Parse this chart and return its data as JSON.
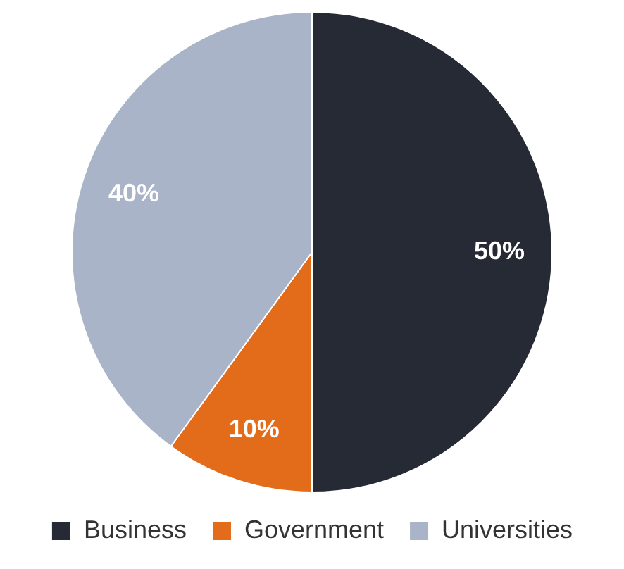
{
  "chart_data": {
    "type": "pie",
    "categories": [
      "Business",
      "Government",
      "Universities"
    ],
    "values": [
      50,
      10,
      40
    ],
    "colors": [
      "#252a35",
      "#e36c1a",
      "#a9b4c8"
    ],
    "value_labels": [
      "50%",
      "10%",
      "40%"
    ],
    "legend": "bottom"
  }
}
